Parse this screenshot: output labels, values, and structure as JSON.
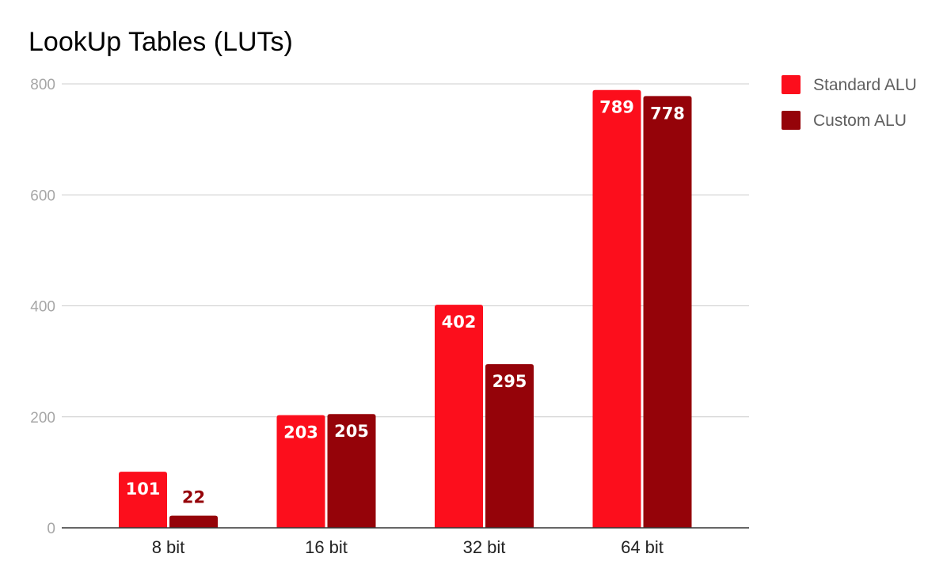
{
  "chart_data": {
    "type": "bar",
    "title": "LookUp Tables (LUTs)",
    "xlabel": "",
    "ylabel": "",
    "categories": [
      "8 bit",
      "16 bit",
      "32 bit",
      "64 bit"
    ],
    "series": [
      {
        "name": "Standard ALU",
        "values": [
          101,
          203,
          402,
          789
        ],
        "color": "#fc0e1c"
      },
      {
        "name": "Custom ALU",
        "values": [
          22,
          205,
          295,
          778
        ],
        "color": "#950309"
      }
    ],
    "ylim": [
      0,
      800
    ],
    "yticks": [
      "0",
      "200",
      "400",
      "600",
      "800"
    ],
    "grid": true,
    "legend": "right"
  }
}
